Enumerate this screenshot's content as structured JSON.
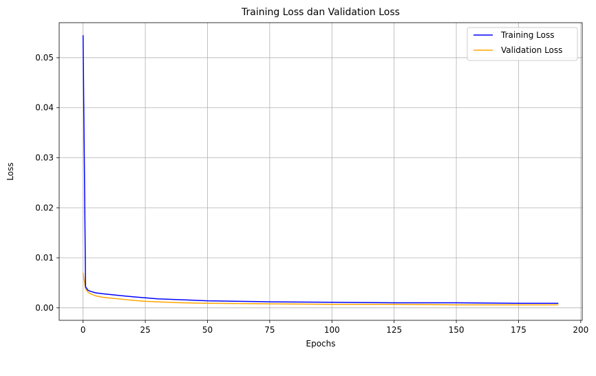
{
  "chart_data": {
    "type": "line",
    "title": "Training Loss dan Validation Loss",
    "xlabel": "Epochs",
    "ylabel": "Loss",
    "xlim": [
      -9.6,
      200.6
    ],
    "ylim": [
      -0.0025,
      0.057
    ],
    "xticks": [
      0,
      25,
      50,
      75,
      100,
      125,
      150,
      175,
      200
    ],
    "yticks": [
      0.0,
      0.01,
      0.02,
      0.03,
      0.04,
      0.05
    ],
    "ytick_labels": [
      "0.00",
      "0.01",
      "0.02",
      "0.03",
      "0.04",
      "0.05"
    ],
    "grid": true,
    "legend_position": "top-right",
    "series": [
      {
        "name": "Training Loss",
        "color": "#0000ff",
        "x": [
          0,
          1,
          2,
          3,
          5,
          8,
          12,
          16,
          20,
          25,
          30,
          40,
          50,
          75,
          100,
          125,
          150,
          175,
          191
        ],
        "y": [
          0.0545,
          0.0042,
          0.0035,
          0.0033,
          0.003,
          0.0028,
          0.0026,
          0.0024,
          0.0022,
          0.002,
          0.0018,
          0.0016,
          0.0014,
          0.0012,
          0.0011,
          0.001,
          0.001,
          0.0009,
          0.0009
        ]
      },
      {
        "name": "Validation Loss",
        "color": "#ffa500",
        "x": [
          0,
          1,
          2,
          3,
          5,
          8,
          12,
          16,
          20,
          25,
          30,
          40,
          50,
          75,
          100,
          125,
          150,
          175,
          191
        ],
        "y": [
          0.007,
          0.0038,
          0.0031,
          0.0028,
          0.0024,
          0.0021,
          0.0019,
          0.0017,
          0.0015,
          0.0013,
          0.0012,
          0.001,
          0.0009,
          0.0008,
          0.0007,
          0.0007,
          0.0006,
          0.0006,
          0.0006
        ]
      }
    ]
  }
}
